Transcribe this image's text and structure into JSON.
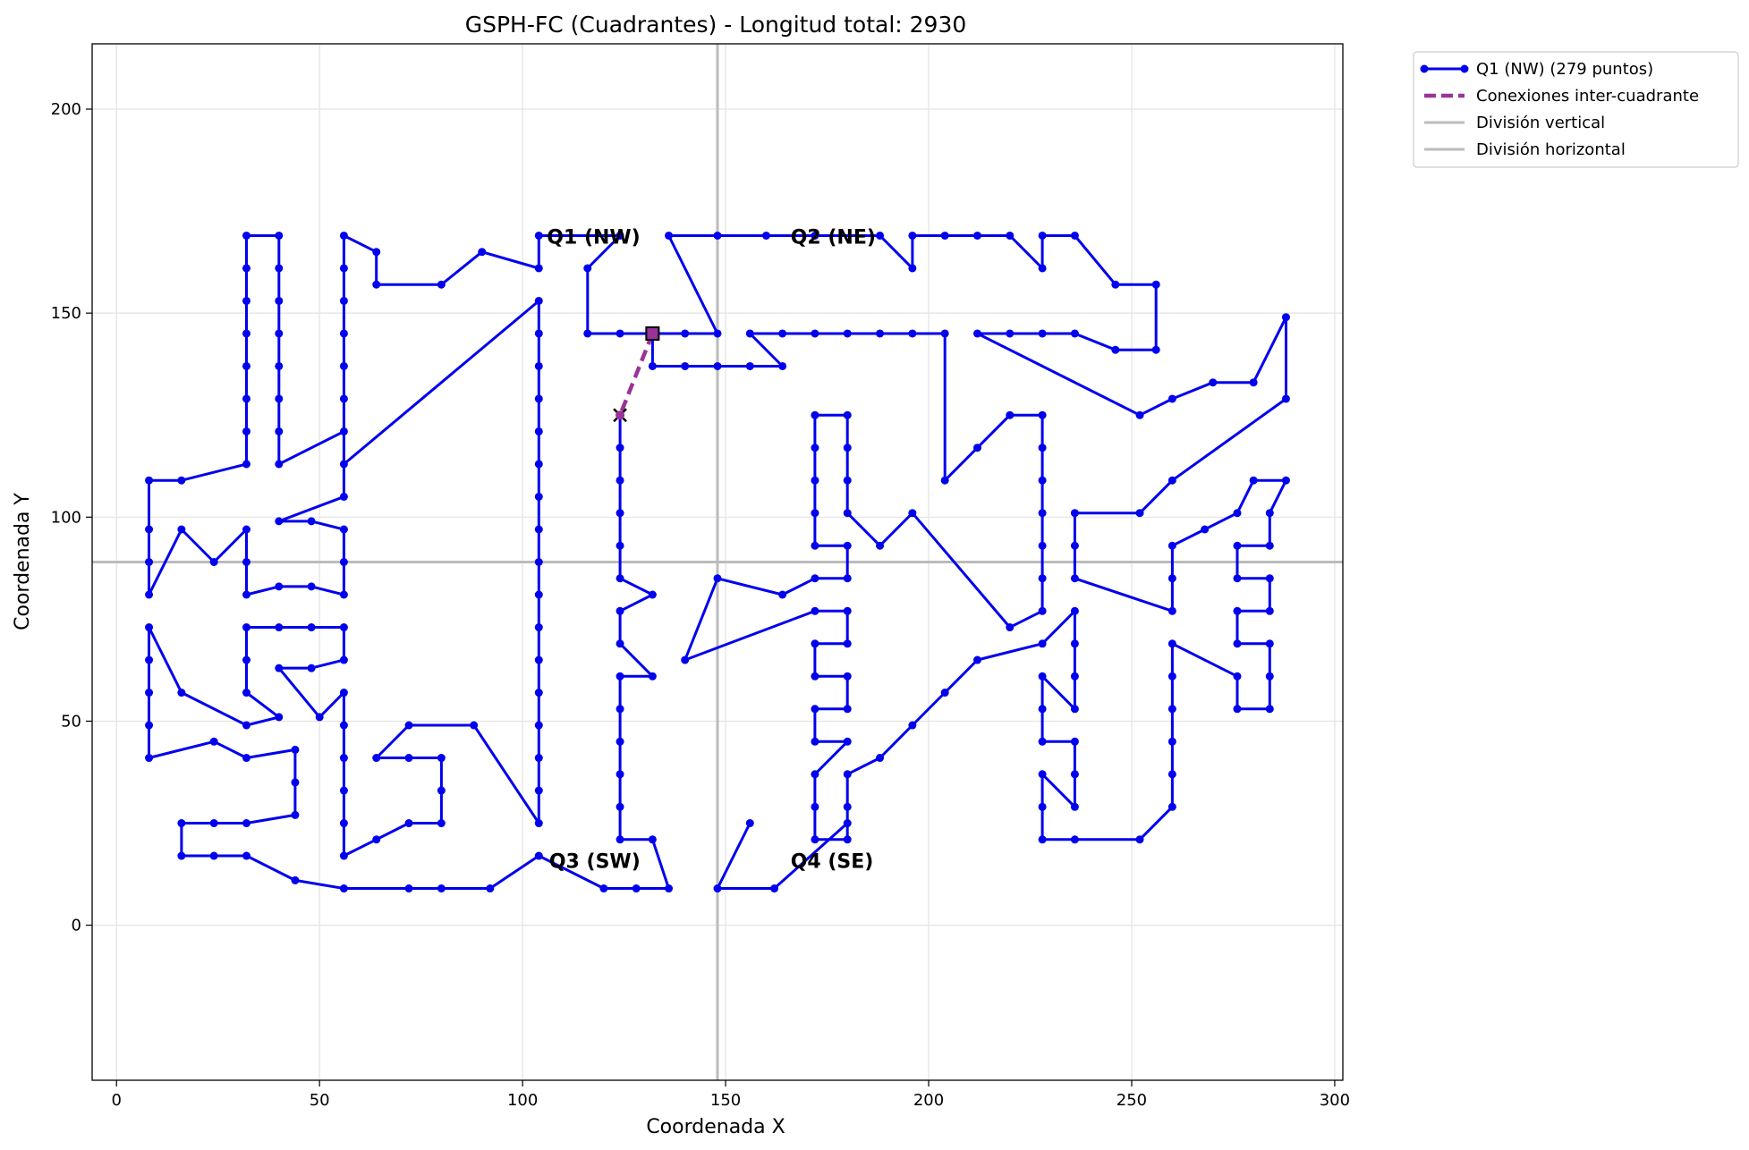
{
  "chart_data": {
    "type": "line",
    "title": "GSPH-FC (Cuadrantes) - Longitud total: 2930",
    "xlabel": "Coordenada X",
    "ylabel": "Coordenada Y",
    "xlim": [
      -6,
      302
    ],
    "ylim": [
      -38,
      216
    ],
    "xticks": [
      0,
      50,
      100,
      150,
      200,
      250,
      300
    ],
    "yticks": [
      0,
      50,
      100,
      150,
      200
    ],
    "grid": true,
    "legend_position": "outside-top-right",
    "colors": {
      "route": "#0000ee",
      "connection": "#993399",
      "division": "#bbbbbb"
    },
    "legend": [
      {
        "label": "Q1 (NW) (279 puntos)",
        "style": "route"
      },
      {
        "label": "Conexiones inter-cuadrante",
        "style": "connection"
      },
      {
        "label": "División vertical",
        "style": "division"
      },
      {
        "label": "División horizontal",
        "style": "division"
      }
    ],
    "divisions": {
      "vertical_x": 148,
      "horizontal_y": 89
    },
    "quadrant_labels": [
      {
        "text": "Q1 (NW)",
        "x": 129,
        "y": 167
      },
      {
        "text": "Q2 (NE)",
        "x": 166,
        "y": 167
      },
      {
        "text": "Q3 (SW)",
        "x": 129,
        "y": 14
      },
      {
        "text": "Q4 (SE)",
        "x": 166,
        "y": 14
      }
    ],
    "connections": [
      {
        "from": [
          132,
          145
        ],
        "to": [
          124,
          125
        ]
      }
    ],
    "route": [
      [
        124,
        125
      ],
      [
        124,
        117
      ],
      [
        124,
        109
      ],
      [
        124,
        101
      ],
      [
        124,
        93
      ],
      [
        124,
        85
      ],
      [
        132,
        81
      ],
      [
        124,
        77
      ],
      [
        124,
        69
      ],
      [
        132,
        61
      ],
      [
        124,
        61
      ],
      [
        124,
        53
      ],
      [
        124,
        45
      ],
      [
        124,
        37
      ],
      [
        124,
        29
      ],
      [
        124,
        21
      ],
      [
        132,
        21
      ],
      [
        136,
        9
      ],
      [
        128,
        9
      ],
      [
        120,
        9
      ],
      [
        104,
        17
      ],
      [
        92,
        9
      ],
      [
        80,
        9
      ],
      [
        72,
        9
      ],
      [
        56,
        9
      ],
      [
        44,
        11
      ],
      [
        32,
        17
      ],
      [
        24,
        17
      ],
      [
        16,
        17
      ],
      [
        16,
        25
      ],
      [
        24,
        25
      ],
      [
        32,
        25
      ],
      [
        44,
        27
      ],
      [
        44,
        35
      ],
      [
        44,
        43
      ],
      [
        32,
        41
      ],
      [
        24,
        45
      ],
      [
        8,
        41
      ],
      [
        8,
        49
      ],
      [
        8,
        57
      ],
      [
        8,
        65
      ],
      [
        8,
        73
      ],
      [
        16,
        57
      ],
      [
        32,
        49
      ],
      [
        40,
        51
      ],
      [
        32,
        57
      ],
      [
        32,
        65
      ],
      [
        32,
        73
      ],
      [
        40,
        73
      ],
      [
        48,
        73
      ],
      [
        56,
        73
      ],
      [
        56,
        65
      ],
      [
        48,
        63
      ],
      [
        40,
        63
      ],
      [
        50,
        51
      ],
      [
        56,
        57
      ],
      [
        56,
        49
      ],
      [
        56,
        41
      ],
      [
        56,
        33
      ],
      [
        56,
        25
      ],
      [
        56,
        17
      ],
      [
        64,
        21
      ],
      [
        72,
        25
      ],
      [
        80,
        25
      ],
      [
        80,
        33
      ],
      [
        80,
        41
      ],
      [
        72,
        41
      ],
      [
        64,
        41
      ],
      [
        72,
        49
      ],
      [
        88,
        49
      ],
      [
        104,
        25
      ],
      [
        104,
        33
      ],
      [
        104,
        41
      ],
      [
        104,
        49
      ],
      [
        104,
        57
      ],
      [
        104,
        65
      ],
      [
        104,
        73
      ],
      [
        104,
        81
      ],
      [
        104,
        89
      ],
      [
        104,
        97
      ],
      [
        104,
        105
      ],
      [
        104,
        113
      ],
      [
        104,
        121
      ],
      [
        104,
        129
      ],
      [
        104,
        137
      ],
      [
        104,
        145
      ],
      [
        104,
        153
      ],
      [
        56,
        113
      ],
      [
        56,
        121
      ],
      [
        56,
        129
      ],
      [
        56,
        137
      ],
      [
        56,
        145
      ],
      [
        56,
        153
      ],
      [
        56,
        161
      ],
      [
        56,
        169
      ],
      [
        64,
        165
      ],
      [
        64,
        157
      ],
      [
        80,
        157
      ],
      [
        90,
        165
      ],
      [
        104,
        161
      ],
      [
        104,
        169
      ],
      [
        124,
        169
      ],
      [
        116,
        161
      ],
      [
        116,
        145
      ],
      [
        124,
        145
      ],
      [
        132,
        145
      ],
      [
        140,
        145
      ],
      [
        148,
        145
      ],
      [
        136,
        169
      ],
      [
        148,
        169
      ],
      [
        160,
        169
      ],
      [
        172,
        169
      ],
      [
        188,
        169
      ],
      [
        196,
        161
      ],
      [
        196,
        169
      ],
      [
        204,
        169
      ],
      [
        212,
        169
      ],
      [
        220,
        169
      ],
      [
        228,
        161
      ],
      [
        228,
        169
      ],
      [
        236,
        169
      ],
      [
        246,
        157
      ],
      [
        256,
        157
      ],
      [
        256,
        141
      ],
      [
        246,
        141
      ],
      [
        236,
        145
      ],
      [
        228,
        145
      ],
      [
        220,
        145
      ],
      [
        212,
        145
      ],
      [
        252,
        125
      ],
      [
        260,
        129
      ],
      [
        270,
        133
      ],
      [
        280,
        133
      ],
      [
        288,
        149
      ],
      [
        288,
        129
      ],
      [
        260,
        109
      ],
      [
        252,
        101
      ],
      [
        236,
        101
      ],
      [
        236,
        93
      ],
      [
        236,
        85
      ],
      [
        260,
        77
      ],
      [
        260,
        85
      ],
      [
        260,
        93
      ],
      [
        268,
        97
      ],
      [
        276,
        101
      ],
      [
        280,
        109
      ],
      [
        288,
        109
      ],
      [
        284,
        101
      ],
      [
        284,
        93
      ],
      [
        276,
        93
      ],
      [
        276,
        85
      ],
      [
        284,
        85
      ],
      [
        284,
        77
      ],
      [
        276,
        77
      ],
      [
        276,
        69
      ],
      [
        284,
        69
      ],
      [
        284,
        61
      ],
      [
        284,
        53
      ],
      [
        276,
        53
      ],
      [
        276,
        61
      ],
      [
        260,
        69
      ],
      [
        260,
        61
      ],
      [
        260,
        53
      ],
      [
        260,
        45
      ],
      [
        260,
        37
      ],
      [
        260,
        29
      ],
      [
        252,
        21
      ],
      [
        236,
        21
      ],
      [
        228,
        21
      ],
      [
        228,
        29
      ],
      [
        228,
        37
      ],
      [
        236,
        29
      ],
      [
        236,
        37
      ],
      [
        236,
        45
      ],
      [
        228,
        45
      ],
      [
        228,
        53
      ],
      [
        228,
        61
      ],
      [
        236,
        53
      ],
      [
        236,
        61
      ],
      [
        236,
        69
      ],
      [
        236,
        77
      ],
      [
        228,
        69
      ],
      [
        212,
        65
      ],
      [
        204,
        57
      ],
      [
        196,
        49
      ],
      [
        188,
        41
      ],
      [
        180,
        37
      ],
      [
        180,
        29
      ],
      [
        180,
        21
      ],
      [
        172,
        21
      ],
      [
        172,
        29
      ],
      [
        172,
        37
      ],
      [
        180,
        45
      ],
      [
        172,
        45
      ],
      [
        172,
        53
      ],
      [
        180,
        53
      ],
      [
        180,
        61
      ],
      [
        172,
        61
      ],
      [
        172,
        69
      ],
      [
        180,
        69
      ],
      [
        180,
        77
      ],
      [
        172,
        77
      ],
      [
        140,
        65
      ],
      [
        148,
        85
      ],
      [
        164,
        81
      ],
      [
        172,
        85
      ],
      [
        180,
        85
      ],
      [
        180,
        93
      ],
      [
        172,
        93
      ],
      [
        172,
        101
      ],
      [
        172,
        109
      ],
      [
        172,
        117
      ],
      [
        172,
        125
      ],
      [
        180,
        125
      ],
      [
        180,
        117
      ],
      [
        180,
        109
      ],
      [
        180,
        101
      ],
      [
        188,
        93
      ],
      [
        196,
        101
      ],
      [
        220,
        73
      ],
      [
        228,
        77
      ],
      [
        228,
        85
      ],
      [
        228,
        93
      ],
      [
        228,
        101
      ],
      [
        228,
        109
      ],
      [
        228,
        117
      ],
      [
        228,
        125
      ],
      [
        220,
        125
      ],
      [
        212,
        117
      ],
      [
        204,
        109
      ],
      [
        204,
        145
      ],
      [
        196,
        145
      ],
      [
        188,
        145
      ],
      [
        180,
        145
      ],
      [
        172,
        145
      ],
      [
        164,
        145
      ],
      [
        156,
        145
      ],
      [
        164,
        137
      ],
      [
        156,
        137
      ],
      [
        148,
        137
      ],
      [
        140,
        137
      ],
      [
        132,
        137
      ],
      [
        132,
        145
      ]
    ],
    "route_segment_2": [
      [
        148,
        9
      ],
      [
        162,
        9
      ],
      [
        180,
        25
      ]
    ],
    "route_segment_3": [
      [
        156,
        25
      ],
      [
        148,
        9
      ]
    ],
    "route_segment_4": [
      [
        8,
        81
      ],
      [
        8,
        89
      ],
      [
        8,
        97
      ],
      [
        8,
        109
      ],
      [
        16,
        109
      ],
      [
        32,
        113
      ],
      [
        32,
        121
      ],
      [
        32,
        129
      ],
      [
        32,
        137
      ],
      [
        32,
        145
      ],
      [
        32,
        153
      ],
      [
        32,
        161
      ],
      [
        32,
        169
      ],
      [
        40,
        169
      ],
      [
        40,
        161
      ],
      [
        40,
        153
      ],
      [
        40,
        145
      ],
      [
        40,
        137
      ],
      [
        40,
        129
      ],
      [
        40,
        121
      ],
      [
        40,
        113
      ],
      [
        56,
        121
      ]
    ],
    "route_segment_5": [
      [
        8,
        81
      ],
      [
        16,
        97
      ],
      [
        24,
        89
      ],
      [
        32,
        97
      ],
      [
        32,
        89
      ],
      [
        32,
        81
      ],
      [
        40,
        83
      ],
      [
        48,
        83
      ],
      [
        56,
        81
      ],
      [
        56,
        89
      ],
      [
        56,
        97
      ],
      [
        48,
        99
      ],
      [
        40,
        99
      ],
      [
        56,
        105
      ],
      [
        56,
        113
      ]
    ]
  }
}
